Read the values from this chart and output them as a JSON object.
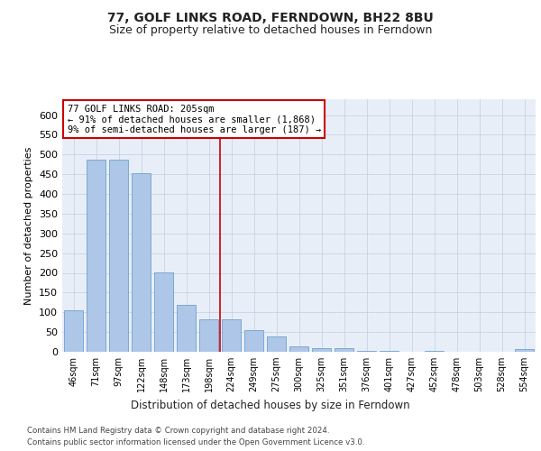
{
  "title1": "77, GOLF LINKS ROAD, FERNDOWN, BH22 8BU",
  "title2": "Size of property relative to detached houses in Ferndown",
  "xlabel": "Distribution of detached houses by size in Ferndown",
  "ylabel": "Number of detached properties",
  "categories": [
    "46sqm",
    "71sqm",
    "97sqm",
    "122sqm",
    "148sqm",
    "173sqm",
    "198sqm",
    "224sqm",
    "249sqm",
    "275sqm",
    "300sqm",
    "325sqm",
    "351sqm",
    "376sqm",
    "401sqm",
    "427sqm",
    "452sqm",
    "478sqm",
    "503sqm",
    "528sqm",
    "554sqm"
  ],
  "values": [
    105,
    488,
    487,
    453,
    201,
    119,
    83,
    82,
    55,
    40,
    14,
    9,
    10,
    3,
    2,
    1,
    2,
    1,
    1,
    1,
    6
  ],
  "bar_color": "#aec6e8",
  "bar_edge_color": "#5a96c8",
  "vline_x_index": 6,
  "vline_color": "#cc0000",
  "annotation_text": "77 GOLF LINKS ROAD: 205sqm\n← 91% of detached houses are smaller (1,868)\n9% of semi-detached houses are larger (187) →",
  "annotation_box_color": "#ffffff",
  "annotation_box_edge": "#cc0000",
  "footer1": "Contains HM Land Registry data © Crown copyright and database right 2024.",
  "footer2": "Contains public sector information licensed under the Open Government Licence v3.0.",
  "ylim": [
    0,
    640
  ],
  "yticks": [
    0,
    50,
    100,
    150,
    200,
    250,
    300,
    350,
    400,
    450,
    500,
    550,
    600
  ],
  "bg_color": "#e8eef8",
  "fig_bg": "#ffffff"
}
